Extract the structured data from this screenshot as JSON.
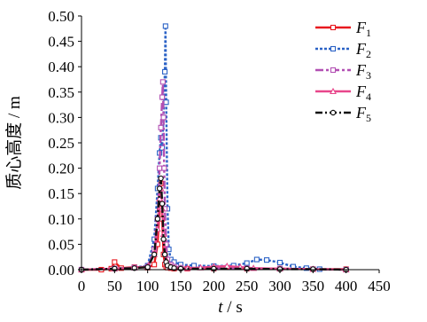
{
  "chart_data": {
    "type": "line",
    "xlabel_var": "t",
    "xlabel_unit": " / s",
    "ylabel": "质心高度 / m",
    "xlim": [
      0,
      450
    ],
    "ylim": [
      0,
      0.5
    ],
    "xticks": [
      "0",
      "50",
      "100",
      "150",
      "200",
      "250",
      "300",
      "350",
      "400",
      "450"
    ],
    "xtick_values": [
      0,
      50,
      100,
      150,
      200,
      250,
      300,
      350,
      400,
      450
    ],
    "yticks": [
      "0.00",
      "0.05",
      "0.10",
      "0.15",
      "0.20",
      "0.25",
      "0.30",
      "0.35",
      "0.40",
      "0.45",
      "0.50"
    ],
    "ytick_values": [
      0,
      0.05,
      0.1,
      0.15,
      0.2,
      0.25,
      0.3,
      0.35,
      0.4,
      0.45,
      0.5
    ],
    "legend_position": "top-right",
    "series": [
      {
        "name": "F",
        "sub": "1",
        "color": "#e8191f",
        "dash": "",
        "marker": "square",
        "x": [
          0,
          30,
          45,
          50,
          60,
          80,
          100,
          110,
          115,
          118,
          120,
          122,
          124,
          126,
          128,
          130,
          135,
          140,
          160,
          200,
          250,
          300,
          350,
          400
        ],
        "y": [
          0.0,
          0.0,
          0.002,
          0.015,
          0.003,
          0.005,
          0.004,
          0.01,
          0.05,
          0.12,
          0.17,
          0.1,
          0.03,
          0.01,
          0.005,
          0.004,
          0.003,
          0.002,
          0.002,
          0.002,
          0.002,
          0.002,
          0.001,
          0.001
        ]
      },
      {
        "name": "F",
        "sub": "2",
        "color": "#2b62c6",
        "dash": "3 2",
        "marker": "square",
        "x": [
          0,
          50,
          80,
          100,
          110,
          115,
          118,
          120,
          122,
          124,
          126,
          127,
          128,
          130,
          132,
          135,
          140,
          150,
          170,
          200,
          230,
          250,
          265,
          280,
          300,
          320,
          340,
          360,
          400
        ],
        "y": [
          0.0,
          0.002,
          0.004,
          0.008,
          0.06,
          0.16,
          0.23,
          0.26,
          0.24,
          0.3,
          0.39,
          0.48,
          0.33,
          0.12,
          0.04,
          0.02,
          0.015,
          0.01,
          0.008,
          0.007,
          0.008,
          0.013,
          0.02,
          0.019,
          0.014,
          0.006,
          0.003,
          0.001,
          0.0
        ]
      },
      {
        "name": "F",
        "sub": "3",
        "color": "#b24fb3",
        "dash": "9 3 3 3",
        "marker": "square",
        "x": [
          0,
          50,
          80,
          100,
          110,
          115,
          118,
          120,
          122,
          123,
          124,
          125,
          126,
          128,
          130,
          135,
          140,
          150,
          200,
          250,
          300,
          350,
          400
        ],
        "y": [
          0.0,
          0.002,
          0.004,
          0.006,
          0.04,
          0.1,
          0.2,
          0.28,
          0.34,
          0.37,
          0.3,
          0.2,
          0.12,
          0.05,
          0.02,
          0.01,
          0.006,
          0.004,
          0.003,
          0.003,
          0.002,
          0.001,
          0.0
        ]
      },
      {
        "name": "F",
        "sub": "4",
        "color": "#e8468b",
        "dash": "",
        "marker": "triangle",
        "x": [
          0,
          50,
          80,
          100,
          110,
          115,
          118,
          120,
          122,
          124,
          126,
          128,
          130,
          135,
          140,
          160,
          180,
          200,
          220,
          240,
          260,
          300,
          350,
          400
        ],
        "y": [
          0.0,
          0.002,
          0.004,
          0.006,
          0.03,
          0.08,
          0.14,
          0.16,
          0.12,
          0.07,
          0.035,
          0.02,
          0.01,
          0.006,
          0.004,
          0.003,
          0.004,
          0.006,
          0.007,
          0.005,
          0.003,
          0.002,
          0.001,
          0.0
        ]
      },
      {
        "name": "F",
        "sub": "5",
        "color": "#111111",
        "dash": "8 3 2 3",
        "marker": "circle",
        "x": [
          0,
          50,
          80,
          100,
          110,
          115,
          118,
          120,
          122,
          124,
          126,
          128,
          130,
          135,
          140,
          150,
          200,
          250,
          300,
          350,
          400
        ],
        "y": [
          0.0,
          0.002,
          0.003,
          0.005,
          0.03,
          0.1,
          0.16,
          0.18,
          0.13,
          0.06,
          0.03,
          0.015,
          0.008,
          0.005,
          0.003,
          0.002,
          0.002,
          0.002,
          0.001,
          0.001,
          0.0
        ]
      }
    ]
  }
}
